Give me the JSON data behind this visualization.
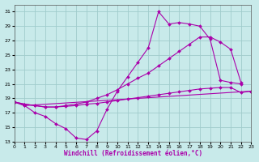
{
  "xlabel": "Windchill (Refroidissement éolien,°C)",
  "ylabel": "",
  "background_color": "#c8eaea",
  "grid_color": "#a0cccc",
  "line_color": "#aa00aa",
  "xlim": [
    0,
    23
  ],
  "ylim": [
    13,
    32
  ],
  "yticks": [
    13,
    15,
    17,
    19,
    21,
    23,
    25,
    27,
    29,
    31
  ],
  "xticks": [
    0,
    1,
    2,
    3,
    4,
    5,
    6,
    7,
    8,
    9,
    10,
    11,
    12,
    13,
    14,
    15,
    16,
    17,
    18,
    19,
    20,
    21,
    22,
    23
  ],
  "series": [
    {
      "x": [
        0,
        1,
        2,
        3,
        4,
        5,
        6,
        7,
        8,
        9,
        10,
        11,
        12,
        13,
        14,
        15,
        16,
        17,
        18,
        19,
        20,
        21,
        22
      ],
      "y": [
        18.5,
        18.0,
        17.0,
        16.5,
        15.5,
        14.8,
        13.5,
        13.3,
        14.5,
        17.5,
        20.0,
        22.0,
        24.0,
        26.0,
        31.0,
        29.3,
        29.5,
        29.3,
        29.0,
        27.2,
        21.5,
        21.2,
        21.0
      ]
    },
    {
      "x": [
        0,
        1,
        2,
        3,
        4,
        5,
        6,
        7,
        8,
        9,
        10,
        11,
        12,
        13,
        14,
        15,
        16,
        17,
        18,
        19,
        20,
        21,
        22
      ],
      "y": [
        18.5,
        18.2,
        18.0,
        17.8,
        17.8,
        18.0,
        18.2,
        18.5,
        19.0,
        19.5,
        20.2,
        21.0,
        21.8,
        22.5,
        23.5,
        24.5,
        25.5,
        26.5,
        27.5,
        27.5,
        26.8,
        25.8,
        21.2
      ]
    },
    {
      "x": [
        0,
        1,
        23
      ],
      "y": [
        18.5,
        18.0,
        20.0
      ]
    },
    {
      "x": [
        0,
        1,
        2,
        3,
        4,
        5,
        6,
        7,
        8,
        9,
        10,
        11,
        12,
        13,
        14,
        15,
        16,
        17,
        18,
        19,
        20,
        21,
        22,
        23
      ],
      "y": [
        18.5,
        18.2,
        18.0,
        17.8,
        17.8,
        17.9,
        18.0,
        18.2,
        18.3,
        18.5,
        18.7,
        18.9,
        19.1,
        19.3,
        19.5,
        19.7,
        19.9,
        20.1,
        20.3,
        20.4,
        20.5,
        20.5,
        19.8,
        20.0
      ]
    }
  ]
}
